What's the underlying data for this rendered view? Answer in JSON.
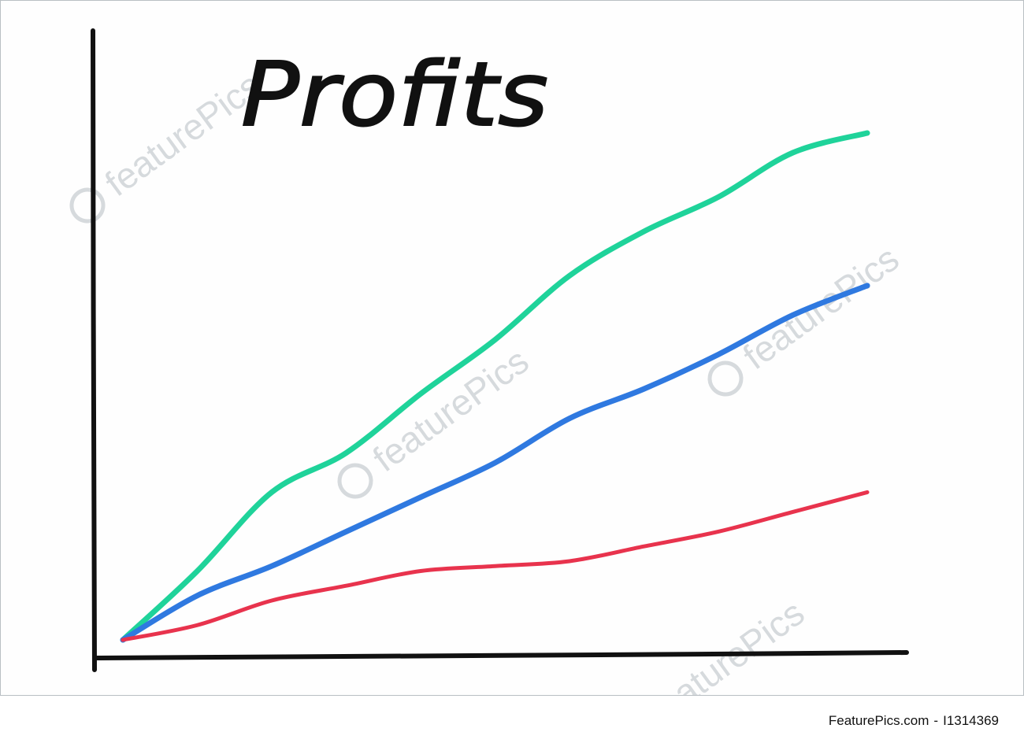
{
  "chart_data": {
    "type": "line",
    "title": "Profits",
    "xlabel": "",
    "ylabel": "",
    "xlim": [
      0,
      10
    ],
    "ylim": [
      0,
      10
    ],
    "grid": false,
    "x": [
      0,
      1,
      2,
      3,
      4,
      5,
      6,
      7,
      8,
      9,
      10
    ],
    "series": [
      {
        "color": "#1fd39a",
        "values": [
          0,
          1.4,
          3.0,
          3.8,
          5.0,
          6.1,
          7.4,
          8.3,
          9.0,
          9.9,
          10.3
        ]
      },
      {
        "color": "#2f79e0",
        "values": [
          0,
          0.9,
          1.5,
          2.2,
          2.9,
          3.6,
          4.5,
          5.1,
          5.8,
          6.6,
          7.2
        ]
      },
      {
        "color": "#e8334d",
        "values": [
          0,
          0.3,
          0.8,
          1.1,
          1.4,
          1.5,
          1.6,
          1.9,
          2.2,
          2.6,
          3.0
        ]
      }
    ],
    "axis_color": "#111111",
    "title_color": "#111111"
  },
  "watermark": {
    "text": "featurePics",
    "color": "#d6dadd"
  },
  "footer": {
    "site": "FeaturePics.com",
    "separator": "-",
    "image_id": "I1314369"
  }
}
